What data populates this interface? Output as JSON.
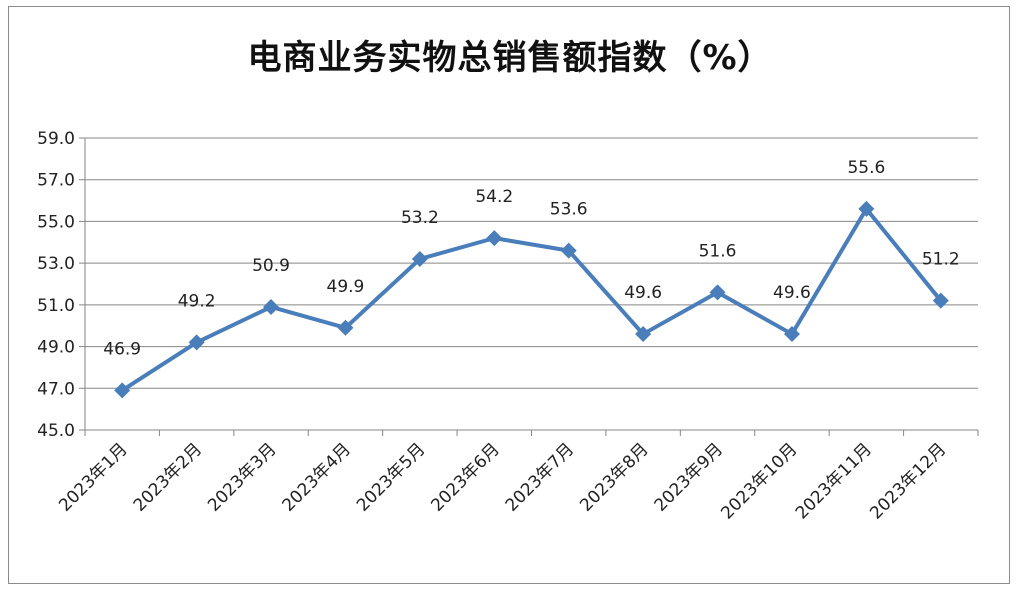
{
  "chart_data": {
    "type": "line",
    "title": "电商业务实物总销售额指数（%）",
    "categories": [
      "2023年1月",
      "2023年2月",
      "2023年3月",
      "2023年4月",
      "2023年5月",
      "2023年6月",
      "2023年7月",
      "2023年8月",
      "2023年9月",
      "2023年10月",
      "2023年11月",
      "2023年12月"
    ],
    "series": [
      {
        "values": [
          46.9,
          49.2,
          50.9,
          49.9,
          53.2,
          54.2,
          53.6,
          49.6,
          51.6,
          49.6,
          55.6,
          51.2
        ],
        "labels": [
          "46.9",
          "49.2",
          "50.9",
          "49.9",
          "53.2",
          "54.2",
          "53.6",
          "49.6",
          "51.6",
          "49.6",
          "55.6",
          "51.2"
        ]
      }
    ],
    "ylim": [
      45.0,
      59.0
    ],
    "yticks": [
      "45.0",
      "47.0",
      "49.0",
      "51.0",
      "53.0",
      "55.0",
      "57.0",
      "59.0"
    ],
    "grid": true,
    "colors": {
      "line": "#4a7ebb",
      "grid": "#868686",
      "axis": "#868686"
    }
  }
}
